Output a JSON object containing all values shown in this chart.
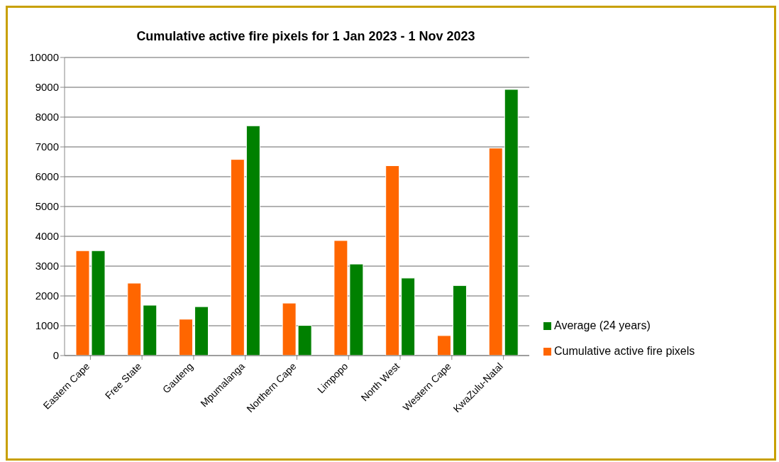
{
  "chart_data": {
    "type": "bar",
    "title": "Cumulative active fire pixels for 1 Jan 2023  - 1 Nov 2023",
    "categories": [
      "Eastern Cape",
      "Free State",
      "Gauteng",
      "Mpumalanga",
      "Northern Cape",
      "Limpopo",
      "North West",
      "Western Cape",
      "KwaZulu-Natal"
    ],
    "series": [
      {
        "name": "Cumulative active fire pixels",
        "color": "#ff6600",
        "values": [
          3520,
          2430,
          1220,
          6580,
          1760,
          3860,
          6370,
          670,
          6960
        ]
      },
      {
        "name": "Average (24 years)",
        "color": "#008000",
        "values": [
          3520,
          1690,
          1640,
          7710,
          1010,
          3070,
          2600,
          2350,
          8930
        ]
      }
    ],
    "ylim": [
      0,
      10000
    ],
    "yticks": [
      0,
      1000,
      2000,
      3000,
      4000,
      5000,
      6000,
      7000,
      8000,
      9000,
      10000
    ],
    "grid": "y",
    "legend": "right"
  }
}
